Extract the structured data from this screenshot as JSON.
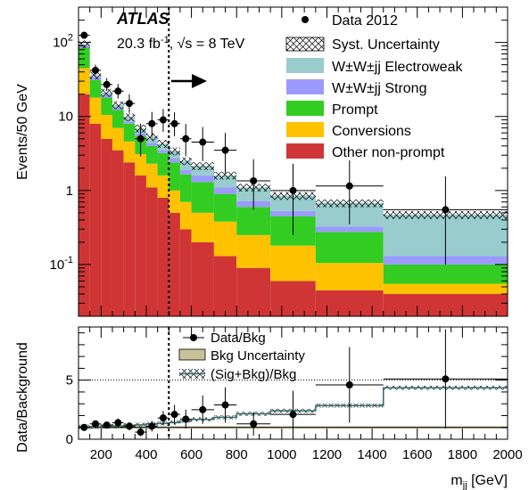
{
  "experiment": "ATLAS",
  "luminosity_text": "20.3 fb",
  "luminosity_sup": "-1",
  "energy_text": ", √s = 8 TeV",
  "chart_data": [
    {
      "type": "bar",
      "stacked": true,
      "panel": "main",
      "ylabel": "Events/50 GeV",
      "yscale": "log",
      "ylim": [
        0.02,
        300
      ],
      "xlim": [
        100,
        2000
      ],
      "y_ticks": [
        {
          "v": 0.1,
          "base": "10",
          "exp": "-1"
        },
        {
          "v": 1,
          "base": "1",
          "exp": ""
        },
        {
          "v": 10,
          "base": "10",
          "exp": ""
        },
        {
          "v": 100,
          "base": "10",
          "exp": "2"
        }
      ],
      "bin_edges": [
        100,
        150,
        200,
        250,
        300,
        350,
        400,
        450,
        500,
        550,
        600,
        700,
        800,
        950,
        1150,
        1450,
        2000
      ],
      "series": [
        {
          "name": "Other non-prompt",
          "color": "#d03535",
          "values": [
            20,
            8,
            5,
            3.5,
            2.4,
            1.6,
            1.1,
            0.8,
            0.5,
            0.3,
            0.2,
            0.13,
            0.09,
            0.06,
            0.045,
            0.04
          ]
        },
        {
          "name": "Conversions",
          "color": "#ffc200",
          "values": [
            25,
            10,
            5.5,
            3.5,
            2.2,
            1.5,
            1.2,
            0.8,
            0.5,
            0.4,
            0.3,
            0.25,
            0.16,
            0.12,
            0.06,
            0.015
          ]
        },
        {
          "name": "Prompt",
          "color": "#33cc22",
          "values": [
            40,
            13,
            7.5,
            5.3,
            3.4,
            2.3,
            1.7,
            1.6,
            1.4,
            0.95,
            0.8,
            0.52,
            0.35,
            0.27,
            0.17,
            0.045
          ]
        },
        {
          "name": "W±W±jj Strong",
          "color": "#9b9bff",
          "values": [
            7,
            3,
            1.5,
            0.8,
            0.6,
            0.5,
            0.4,
            0.3,
            0.3,
            0.25,
            0.3,
            0.2,
            0.12,
            0.08,
            0.05,
            0.03
          ]
        },
        {
          "name": "W±W±jj Electroweak",
          "color": "#99cccc",
          "values": [
            3,
            2,
            1.5,
            1.2,
            1.2,
            1,
            0.9,
            0.8,
            0.7,
            0.6,
            0.55,
            0.5,
            0.38,
            0.32,
            0.35,
            0.34
          ]
        }
      ],
      "syst_uncertainty": {
        "name": "Syst. Uncertainty",
        "rel": 0.12
      },
      "data": {
        "name": "Data 2012",
        "x": [
          125,
          175,
          225,
          275,
          325,
          375,
          425,
          475,
          525,
          575,
          650,
          750,
          875,
          1050,
          1300,
          1725
        ],
        "y": [
          125,
          42,
          27,
          22,
          15,
          5,
          8,
          9,
          8,
          5,
          4.5,
          3.5,
          1.35,
          1,
          1.15,
          0.55
        ],
        "yerr_up": [
          15,
          8,
          6,
          5.5,
          5,
          3,
          3.5,
          3.6,
          3.4,
          2.9,
          2.7,
          2.5,
          1.3,
          1.3,
          1.4,
          1
        ],
        "yerr_dn": [
          12,
          6,
          5,
          4.5,
          3.8,
          2.1,
          2.7,
          2.8,
          2.6,
          2.1,
          2,
          1.8,
          0.8,
          0.75,
          0.8,
          0.45
        ]
      },
      "cut_line_x": 500
    },
    {
      "type": "bar",
      "panel": "ratio",
      "ylabel": "Data/Background",
      "xlabel_base": "m",
      "xlabel_sub": "jj",
      "xlabel_unit": " [GeV]",
      "xlim": [
        100,
        2000
      ],
      "ylim": [
        0,
        9.5
      ],
      "y_ticks": [
        0,
        5
      ],
      "x_ticks": [
        200,
        400,
        600,
        800,
        1000,
        1200,
        1400,
        1600,
        1800,
        2000
      ],
      "bkg_uncertainty": {
        "name": "Bkg Uncertainty",
        "color": "#c8c29a",
        "rel": 0.1
      },
      "sig_plus_bkg": {
        "name": "(Sig+Bkg)/Bkg",
        "bin_edges": [
          100,
          150,
          200,
          250,
          300,
          350,
          400,
          450,
          500,
          550,
          600,
          700,
          800,
          950,
          1150,
          1450,
          2000
        ],
        "values": [
          1.05,
          1.06,
          1.1,
          1.12,
          1.18,
          1.22,
          1.3,
          1.33,
          1.4,
          1.55,
          1.68,
          1.85,
          2.15,
          2.4,
          2.85,
          4.35
        ]
      },
      "data": {
        "name": "Data/Bkg",
        "x": [
          125,
          175,
          225,
          275,
          325,
          375,
          425,
          475,
          525,
          575,
          650,
          750,
          875,
          1050,
          1300,
          1725
        ],
        "y": [
          1.0,
          1.3,
          1.2,
          1.4,
          1.1,
          0.6,
          1.1,
          1.8,
          2.1,
          1.7,
          2.5,
          2.9,
          1.3,
          2.1,
          4.6,
          5.1
        ],
        "yerr": [
          0.12,
          0.25,
          0.25,
          0.35,
          0.35,
          0.35,
          0.45,
          0.6,
          0.8,
          0.8,
          1.2,
          1.5,
          1.0,
          2.0,
          3.2,
          4.2
        ]
      },
      "ref_line_y": 5,
      "cut_line_x": 500
    }
  ]
}
